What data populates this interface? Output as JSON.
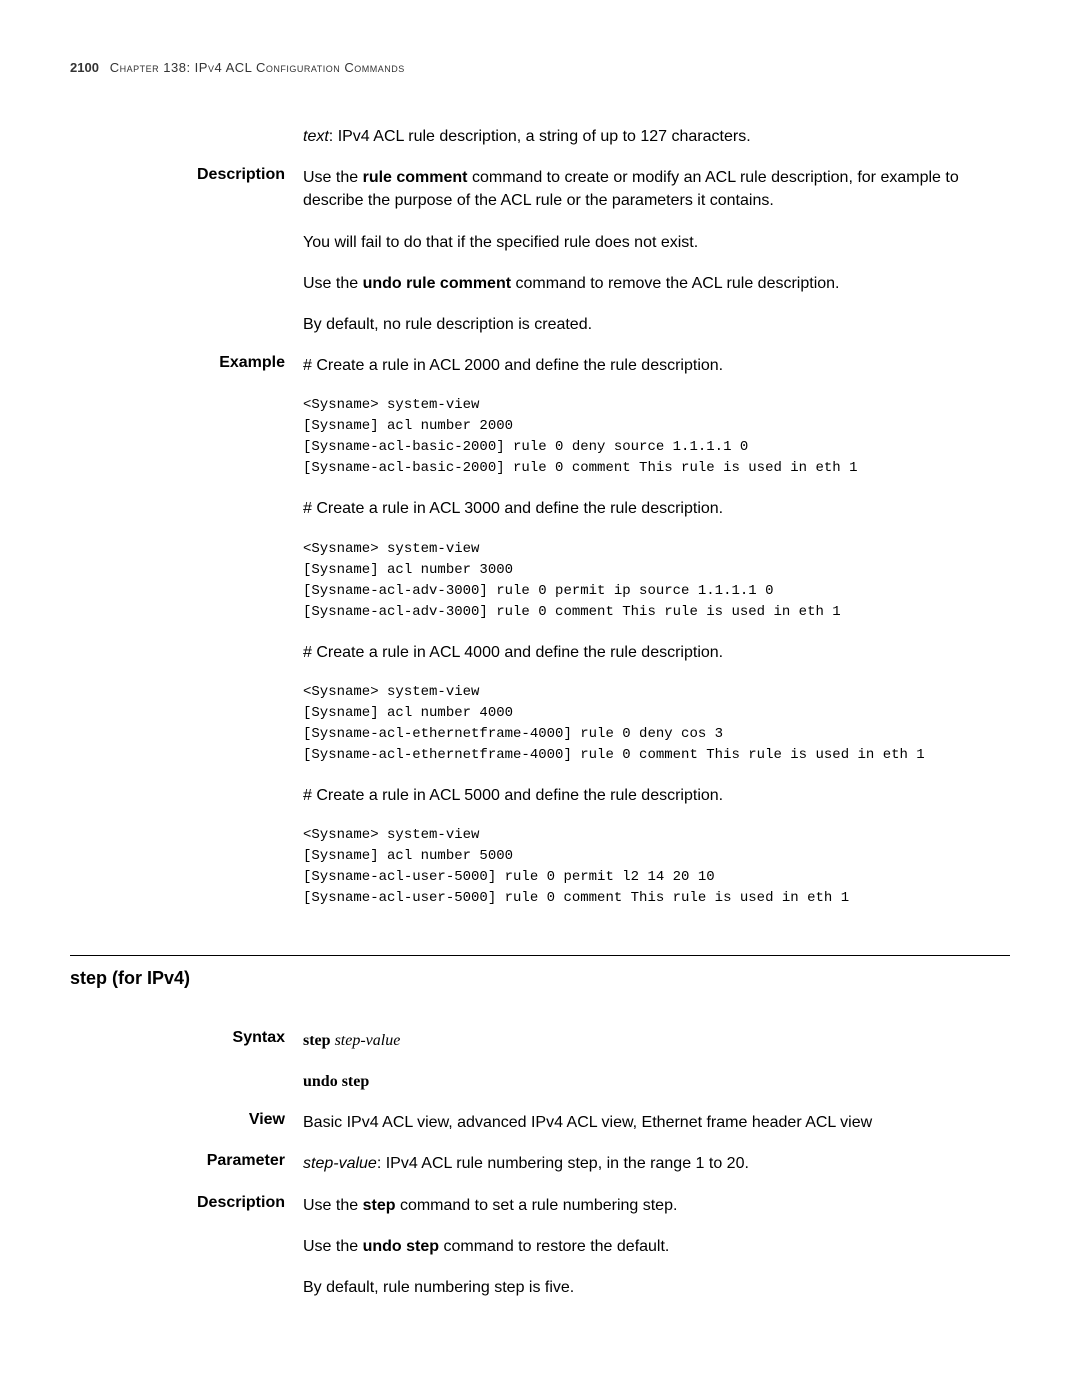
{
  "header": {
    "page_number": "2100",
    "chapter_text": "Chapter 138: IPv4 ACL Configuration Commands"
  },
  "top_text": {
    "italic_word": "text",
    "rest": ": IPv4 ACL rule description, a string of up to 127 characters."
  },
  "description": {
    "label": "Description",
    "p1_a": "Use the ",
    "p1_bold": "rule comment",
    "p1_b": " command to create or modify an ACL rule description, for example to describe the purpose of the ACL rule or the parameters it contains.",
    "p2": "You will fail to do that if the specified rule does not exist.",
    "p3_a": "Use the ",
    "p3_bold": "undo rule comment",
    "p3_b": " command to remove the ACL rule description.",
    "p4": "By default, no rule description is created."
  },
  "example": {
    "label": "Example",
    "intro1": "# Create a rule in ACL 2000 and define the rule description.",
    "code1": "<Sysname> system-view\n[Sysname] acl number 2000\n[Sysname-acl-basic-2000] rule 0 deny source 1.1.1.1 0\n[Sysname-acl-basic-2000] rule 0 comment This rule is used in eth 1",
    "intro2": "# Create a rule in ACL 3000 and define the rule description.",
    "code2": "<Sysname> system-view\n[Sysname] acl number 3000\n[Sysname-acl-adv-3000] rule 0 permit ip source 1.1.1.1 0\n[Sysname-acl-adv-3000] rule 0 comment This rule is used in eth 1",
    "intro3": "# Create a rule in ACL 4000 and define the rule description.",
    "code3": "<Sysname> system-view\n[Sysname] acl number 4000\n[Sysname-acl-ethernetframe-4000] rule 0 deny cos 3\n[Sysname-acl-ethernetframe-4000] rule 0 comment This rule is used in eth 1",
    "intro4": "# Create a rule in ACL 5000 and define the rule description.",
    "code4": "<Sysname> system-view\n[Sysname] acl number 5000\n[Sysname-acl-user-5000] rule 0 permit l2 14 20 10\n[Sysname-acl-user-5000] rule 0 comment This rule is used in eth 1"
  },
  "section": {
    "title": "step (for IPv4)"
  },
  "syntax": {
    "label": "Syntax",
    "line1_bold": "step",
    "line1_italic": " step-value",
    "line2": "undo step"
  },
  "view": {
    "label": "View",
    "text": "Basic IPv4 ACL view, advanced IPv4 ACL view, Ethernet frame header ACL view"
  },
  "parameter": {
    "label": "Parameter",
    "italic": "step-value",
    "rest": ": IPv4 ACL rule numbering step, in the range 1 to 20."
  },
  "description2": {
    "label": "Description",
    "p1_a": "Use the ",
    "p1_bold": "step",
    "p1_b": " command to set a rule numbering step.",
    "p2_a": "Use the ",
    "p2_bold": "undo step",
    "p2_b": " command to restore the default.",
    "p3": "By default, rule numbering step is five."
  }
}
